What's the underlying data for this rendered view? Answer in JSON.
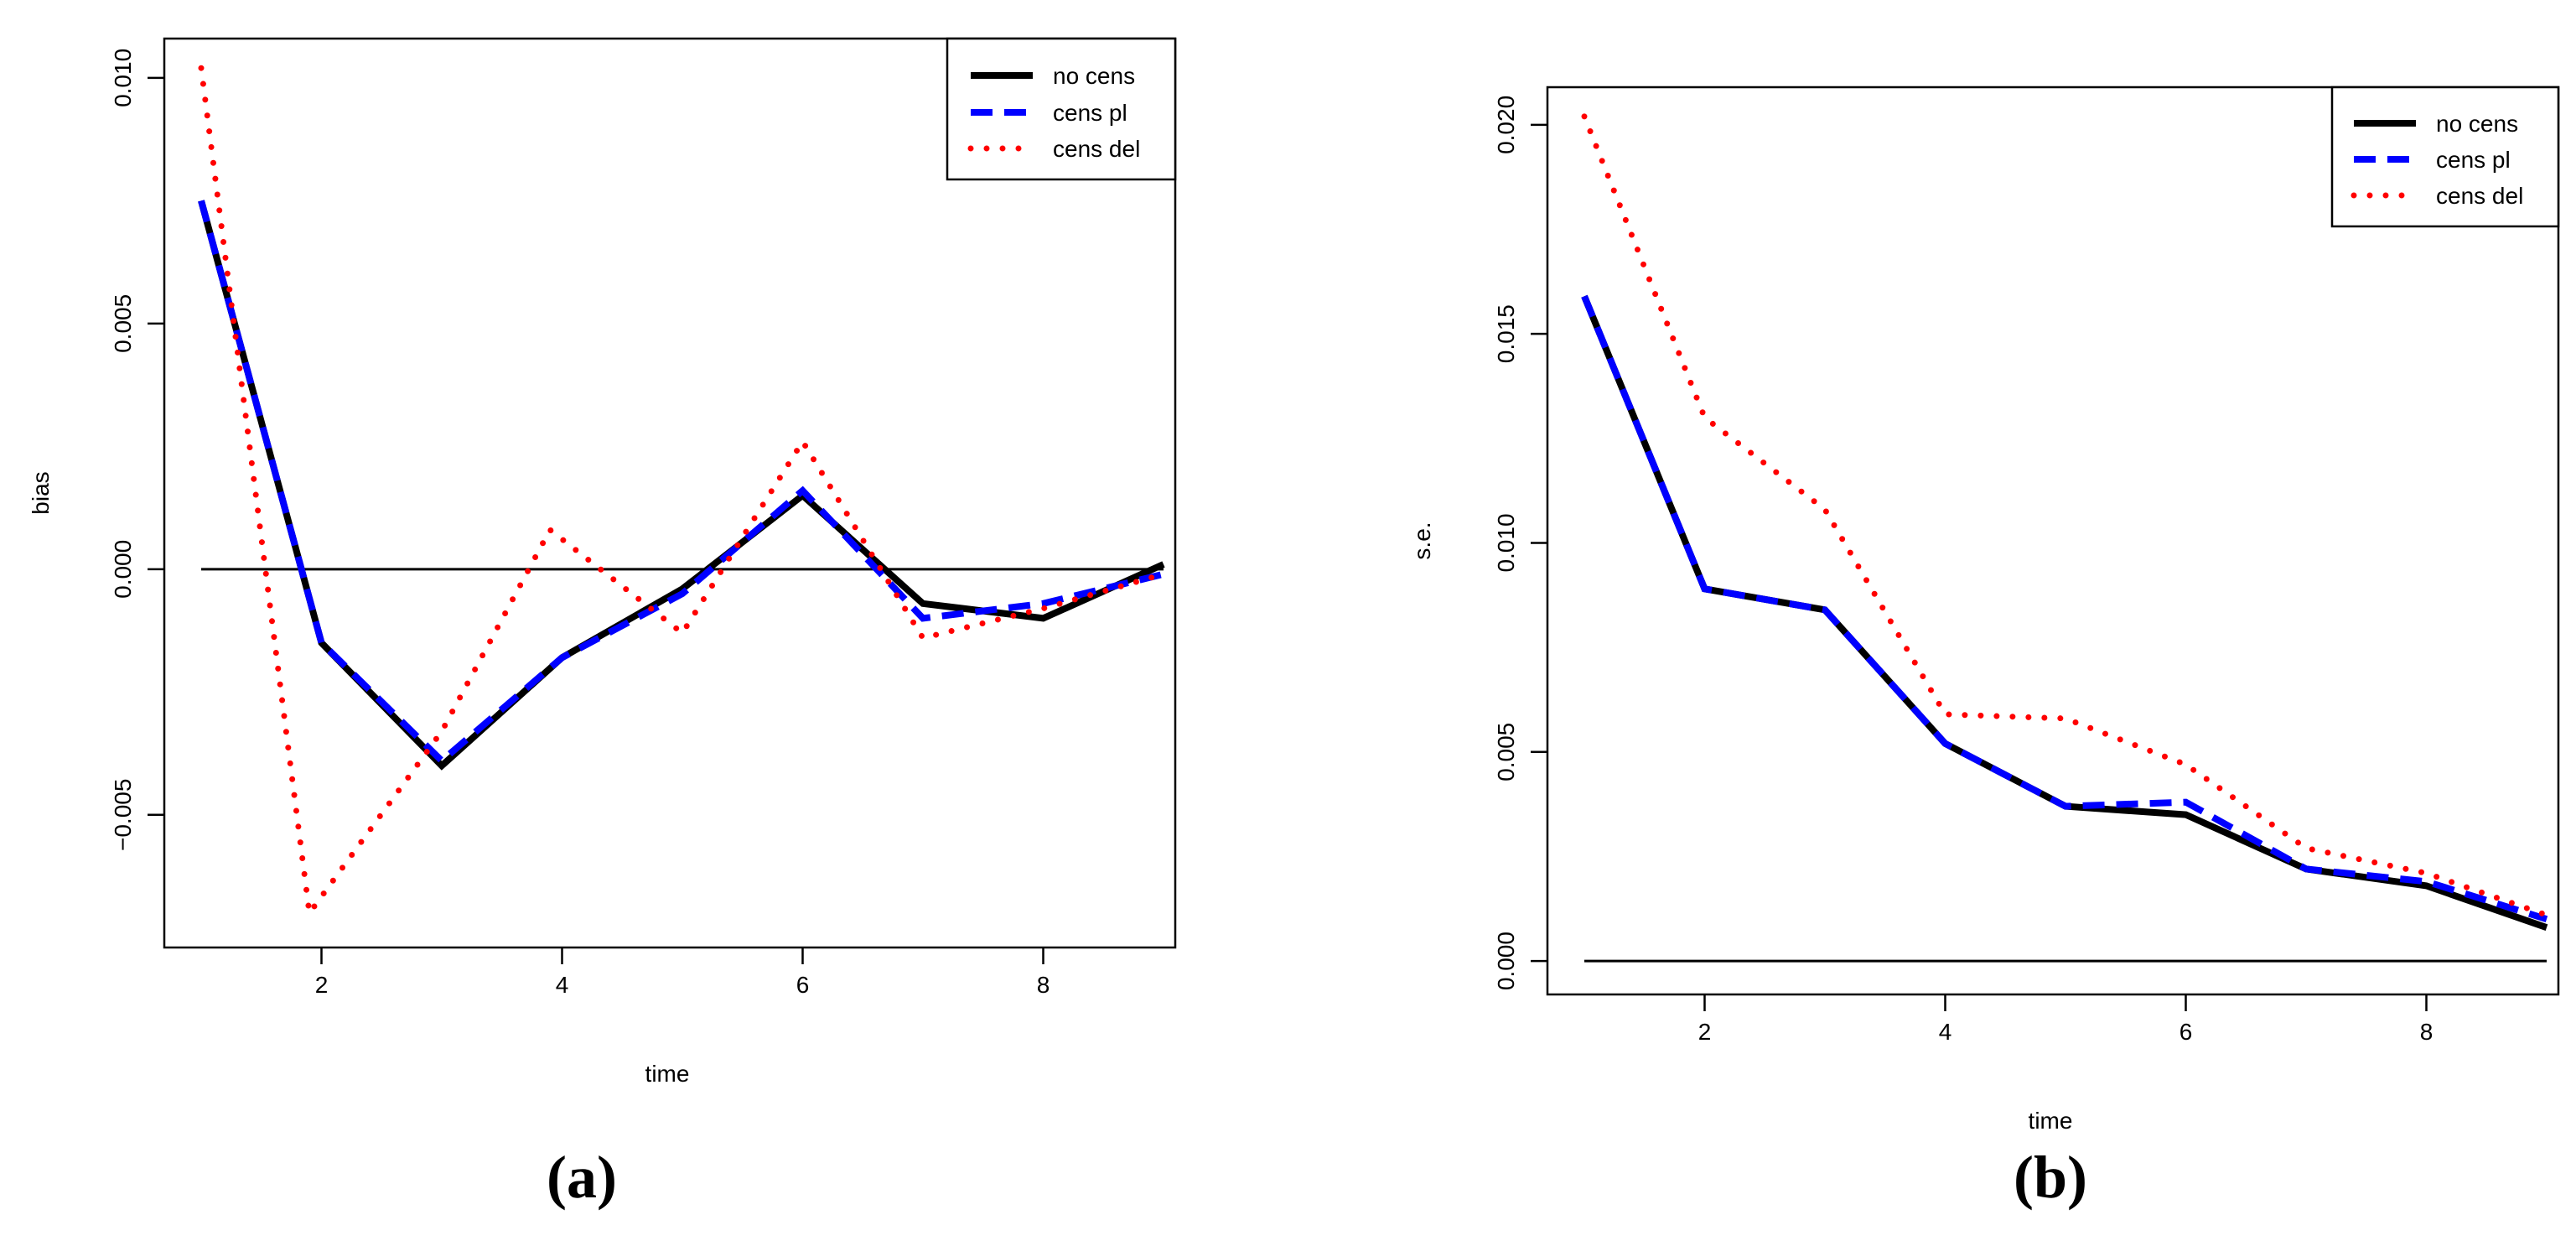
{
  "chart_data": [
    {
      "type": "line",
      "panel_label": "(a)",
      "title": "",
      "xlabel": "time",
      "ylabel": "bias",
      "xlim": [
        1,
        9
      ],
      "ylim": [
        -0.0077,
        0.0108
      ],
      "xticks": [
        2,
        4,
        6,
        8
      ],
      "xtick_labels": [
        "2",
        "4",
        "6",
        "8"
      ],
      "yticks": [
        -0.005,
        0.0,
        0.005,
        0.01
      ],
      "ytick_labels": [
        "-0.005",
        "0.000",
        "0.005",
        "0.010"
      ],
      "grid": false,
      "reference_line": 0,
      "legend": {
        "position": "top-right",
        "entries": [
          "no cens",
          "cens pl",
          "cens del"
        ]
      },
      "series": [
        {
          "name": "no cens",
          "style": "solid",
          "color": "#000000",
          "x": [
            1,
            2,
            3,
            4,
            5,
            6,
            7,
            8,
            9
          ],
          "values": [
            0.0075,
            -0.0015,
            -0.004,
            -0.0018,
            -0.0004,
            0.0015,
            -0.0007,
            -0.001,
            0.0001
          ]
        },
        {
          "name": "cens pl",
          "style": "dashed",
          "color": "#0000ff",
          "x": [
            1,
            2,
            3,
            4,
            5,
            6,
            7,
            8,
            9
          ],
          "values": [
            0.0075,
            -0.0015,
            -0.0039,
            -0.0018,
            -0.0005,
            0.0016,
            -0.001,
            -0.0007,
            -0.0001
          ]
        },
        {
          "name": "cens del",
          "style": "dotted",
          "color": "#ff0000",
          "x": [
            1,
            1.9,
            3,
            3.9,
            5,
            6,
            7,
            8,
            9
          ],
          "values": [
            0.0102,
            -0.007,
            -0.0033,
            0.0008,
            -0.0013,
            0.0026,
            -0.0014,
            -0.0008,
            -0.0001
          ]
        }
      ]
    },
    {
      "type": "line",
      "panel_label": "(b)",
      "title": "",
      "xlabel": "time",
      "ylabel": "s.e.",
      "xlim": [
        1,
        9
      ],
      "ylim": [
        -0.0008,
        0.0209
      ],
      "xticks": [
        2,
        4,
        6,
        8
      ],
      "xtick_labels": [
        "2",
        "4",
        "6",
        "8"
      ],
      "yticks": [
        0.0,
        0.005,
        0.01,
        0.015,
        0.02
      ],
      "ytick_labels": [
        "0.000",
        "0.005",
        "0.010",
        "0.015",
        "0.020"
      ],
      "grid": false,
      "reference_line": 0,
      "legend": {
        "position": "top-right",
        "entries": [
          "no cens",
          "cens pl",
          "cens del"
        ]
      },
      "series": [
        {
          "name": "no cens",
          "style": "solid",
          "color": "#000000",
          "x": [
            1,
            2,
            3,
            4,
            5,
            6,
            7,
            8,
            9
          ],
          "values": [
            0.0159,
            0.0089,
            0.0084,
            0.0052,
            0.0037,
            0.0035,
            0.0022,
            0.0018,
            0.0008
          ]
        },
        {
          "name": "cens pl",
          "style": "dashed",
          "color": "#0000ff",
          "x": [
            1,
            2,
            3,
            4,
            5,
            6,
            7,
            8,
            9
          ],
          "values": [
            0.0159,
            0.0089,
            0.0084,
            0.0052,
            0.0037,
            0.0038,
            0.0022,
            0.0019,
            0.001
          ]
        },
        {
          "name": "cens del",
          "style": "dotted",
          "color": "#ff0000",
          "x": [
            1,
            2,
            3,
            4,
            5,
            6,
            7,
            8,
            9
          ],
          "values": [
            0.0202,
            0.013,
            0.0108,
            0.0059,
            0.0058,
            0.0047,
            0.0027,
            0.0021,
            0.0011
          ]
        }
      ]
    }
  ]
}
